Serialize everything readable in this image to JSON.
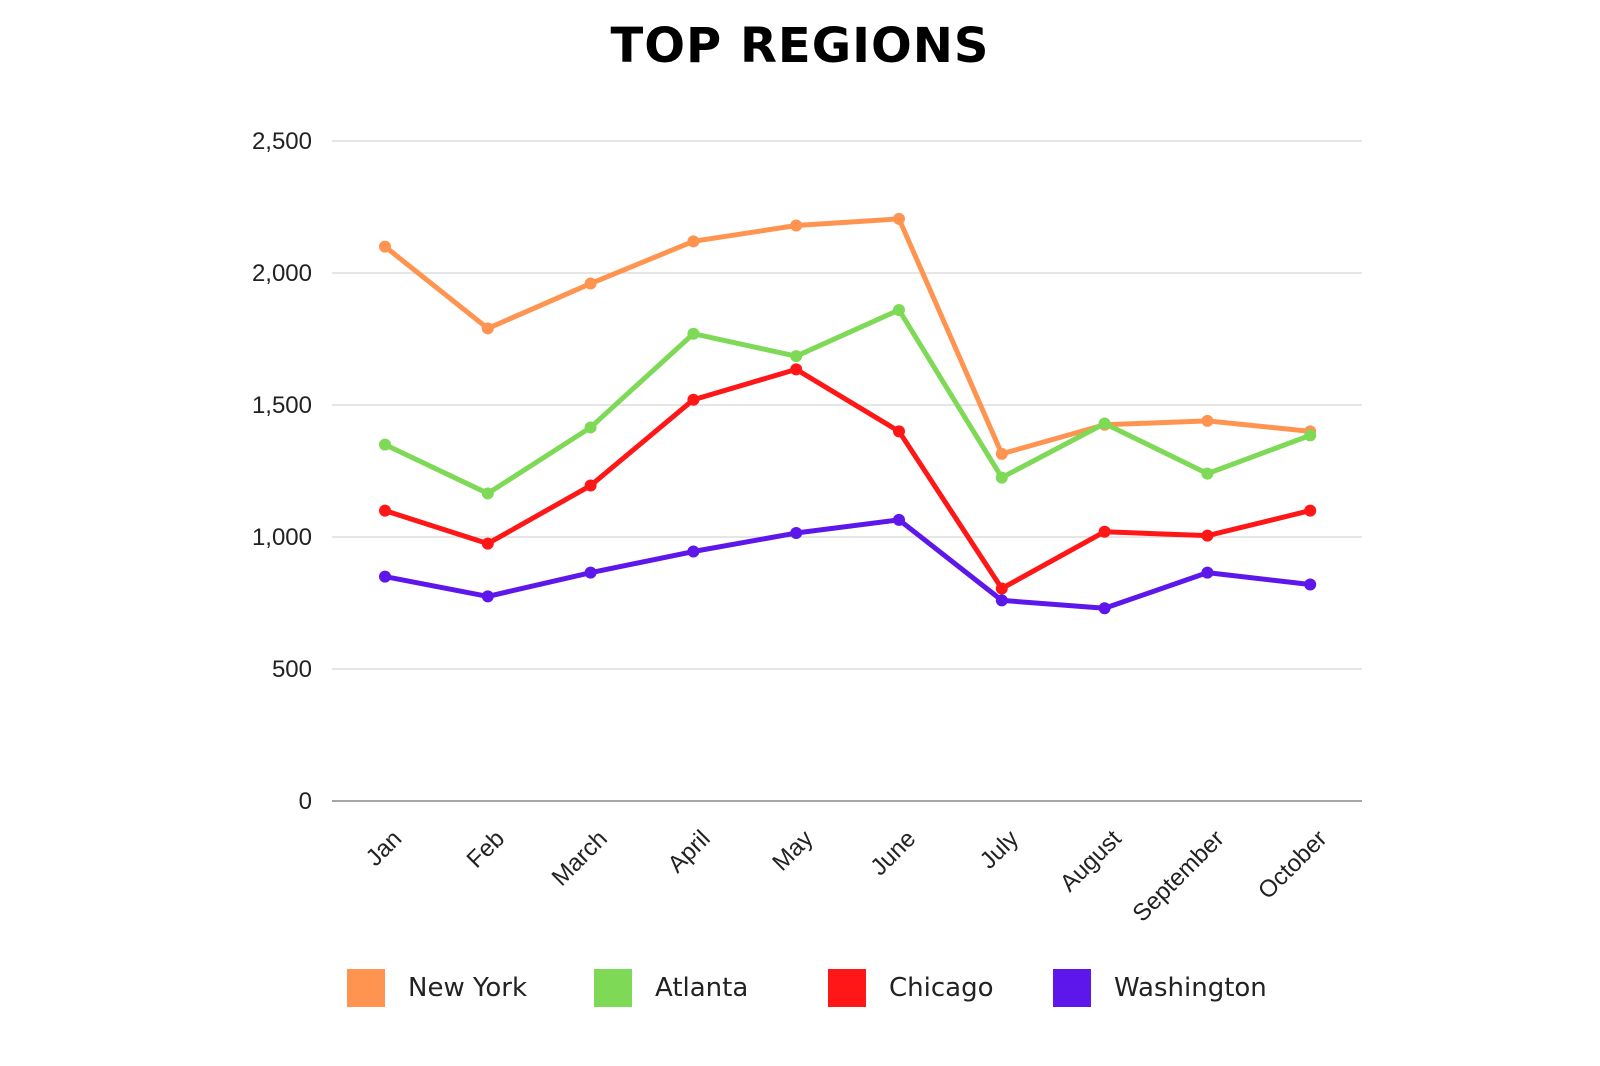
{
  "chart_data": {
    "type": "line",
    "title": "TOP REGIONS",
    "xlabel": "",
    "ylabel": "",
    "ylim": [
      0,
      2500
    ],
    "yticks": [
      "0",
      "500",
      "1,000",
      "1,500",
      "2,000",
      "2,500"
    ],
    "ytick_values": [
      0,
      500,
      1000,
      1500,
      2000,
      2500
    ],
    "grid": true,
    "legend_position": "bottom",
    "categories": [
      "Jan",
      "Feb",
      "March",
      "April",
      "May",
      "June",
      "July",
      "August",
      "September",
      "October"
    ],
    "series": [
      {
        "name": "New York",
        "color": "#FF9450",
        "values": [
          2100,
          1790,
          1960,
          2120,
          2180,
          2205,
          1315,
          1425,
          1440,
          1400
        ]
      },
      {
        "name": "Atlanta",
        "color": "#7ED957",
        "values": [
          1350,
          1165,
          1415,
          1770,
          1685,
          1860,
          1225,
          1430,
          1240,
          1385
        ]
      },
      {
        "name": "Chicago",
        "color": "#FF1616",
        "values": [
          1100,
          975,
          1195,
          1520,
          1635,
          1400,
          805,
          1020,
          1005,
          1100
        ]
      },
      {
        "name": "Washington",
        "color": "#5E17EB",
        "values": [
          850,
          775,
          865,
          945,
          1015,
          1065,
          760,
          730,
          865,
          820
        ]
      }
    ]
  }
}
